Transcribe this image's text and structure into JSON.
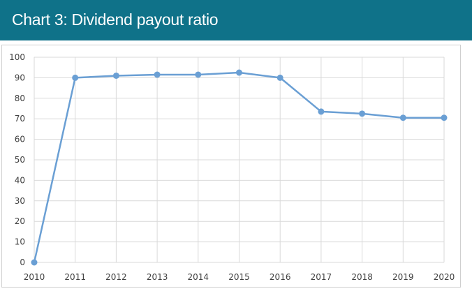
{
  "header": {
    "title": "Chart 3: Dividend payout ratio"
  },
  "chart_data": {
    "type": "line",
    "title": "Chart 3: Dividend payout ratio",
    "xlabel": "",
    "ylabel": "",
    "x": [
      "2010",
      "2011",
      "2012",
      "2013",
      "2014",
      "2015",
      "2016",
      "2017",
      "2018",
      "2019",
      "2020"
    ],
    "series": [
      {
        "values": [
          0,
          90,
          91,
          91.5,
          91.5,
          92.5,
          90,
          73.5,
          72.5,
          70.5,
          70.5
        ]
      }
    ],
    "ylim": [
      0,
      100
    ],
    "yticks": [
      "0",
      "10",
      "20",
      "30",
      "40",
      "50",
      "60",
      "70",
      "80",
      "90",
      "100"
    ],
    "grid": true,
    "legend": "none",
    "colors": {
      "line": "#6a9fd4",
      "grid": "#d9d9d9",
      "header": "#0f7289"
    }
  }
}
